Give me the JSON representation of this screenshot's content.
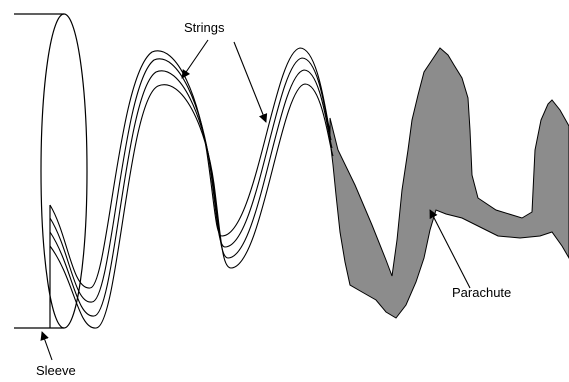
{
  "labels": {
    "strings": "Strings",
    "parachute": "Parachute",
    "sleeve": "Sleeve"
  },
  "colors": {
    "line": "#000000",
    "parachute_fill": "#8c8c8c",
    "background": "#ffffff"
  }
}
